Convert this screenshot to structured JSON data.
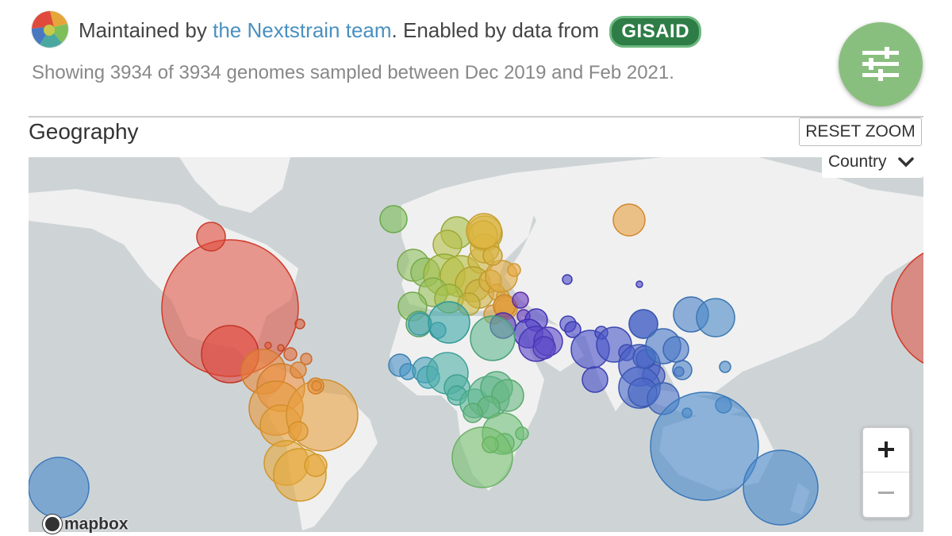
{
  "header": {
    "maintained_prefix": "Maintained by ",
    "team_link": "the Nextstrain team",
    "enabled_text": ". Enabled by data from ",
    "gisaid_badge": "GISAID",
    "logo_icon": "nextstrain-logo-icon"
  },
  "summary": "Showing 3934 of 3934 genomes sampled between Dec 2019 and Feb 2021.",
  "controls": {
    "settings_icon": "sliders-icon",
    "settings_color": "#89bf7e"
  },
  "geography": {
    "title": "Geography",
    "reset_zoom": "RESET ZOOM",
    "color_by": "Country",
    "zoom_in": "+",
    "zoom_out": "−",
    "attribution": "mapbox"
  },
  "colors": {
    "land": "#f0f0f0",
    "water": "#ced4d6"
  }
}
